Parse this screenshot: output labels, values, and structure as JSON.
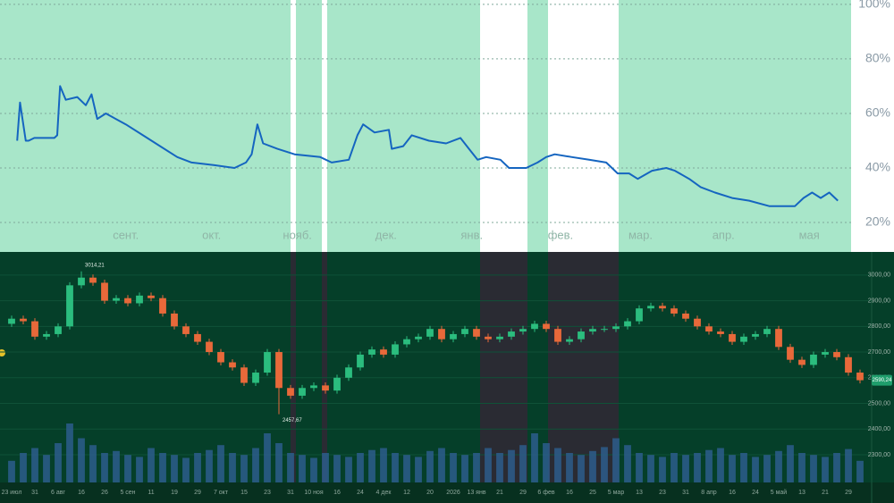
{
  "chart_data": [
    {
      "type": "line",
      "color": "#1565c0",
      "x": [
        6,
        7,
        9,
        10,
        12,
        19,
        20,
        21,
        23,
        27,
        30,
        32,
        34,
        37,
        44,
        50,
        56,
        62,
        67,
        75,
        82,
        86,
        88,
        90,
        92,
        97,
        103,
        112,
        116,
        122,
        125,
        127,
        131,
        136,
        137,
        141,
        144,
        150,
        156,
        161,
        164,
        167,
        170,
        175,
        178,
        184,
        188,
        191,
        194,
        200,
        206,
        212,
        216,
        220,
        223,
        228,
        233,
        236,
        241,
        245,
        250,
        256,
        262,
        269,
        278,
        281,
        284,
        287,
        290,
        293
      ],
      "values": [
        50,
        64,
        50,
        50,
        51,
        51,
        52,
        70,
        65,
        66,
        63,
        67,
        58,
        60,
        56,
        52,
        48,
        44,
        42,
        41,
        40,
        42,
        45,
        56,
        49,
        47,
        45,
        44,
        42,
        43,
        52,
        56,
        53,
        54,
        47,
        48,
        52,
        50,
        49,
        51,
        47,
        43,
        44,
        43,
        40,
        40,
        42,
        44,
        45,
        44,
        43,
        42,
        38,
        38,
        36,
        39,
        40,
        39,
        36,
        33,
        31,
        29,
        28,
        26,
        26,
        29,
        31,
        29,
        31,
        28
      ],
      "xlim": [
        0,
        297
      ],
      "xticks": [
        {
          "value": 44,
          "label": "сент."
        },
        {
          "value": 74,
          "label": "окт."
        },
        {
          "value": 104,
          "label": "нояб."
        },
        {
          "value": 135,
          "label": "дек."
        },
        {
          "value": 165,
          "label": "янв."
        },
        {
          "value": 196,
          "label": "фев."
        },
        {
          "value": 224,
          "label": "мар."
        },
        {
          "value": 253,
          "label": "апр."
        },
        {
          "value": 283,
          "label": "мая"
        }
      ],
      "ylim": [
        9.2,
        101.6
      ],
      "yticks": [
        {
          "value": 20,
          "label": "20%"
        },
        {
          "value": 40,
          "label": "40%"
        },
        {
          "value": 60,
          "label": "60%"
        },
        {
          "value": 80,
          "label": "80%"
        },
        {
          "value": 100,
          "label": "100%"
        }
      ],
      "grid": true
    },
    {
      "type": "candlestick",
      "up_color": "#2bbd7e",
      "down_color": "#e8693a",
      "volume_color": "#2d5d8c",
      "open": [
        2810,
        2830,
        2820,
        2760,
        2770,
        2800,
        2960,
        2990,
        2970,
        2900,
        2910,
        2890,
        2920,
        2910,
        2850,
        2800,
        2770,
        2740,
        2700,
        2660,
        2640,
        2580,
        2620,
        2700,
        2560,
        2530,
        2560,
        2570,
        2550,
        2600,
        2640,
        2690,
        2710,
        2690,
        2730,
        2750,
        2760,
        2790,
        2750,
        2770,
        2790,
        2760,
        2750,
        2760,
        2780,
        2790,
        2810,
        2790,
        2740,
        2750,
        2780,
        2790,
        2790,
        2800,
        2820,
        2870,
        2880,
        2870,
        2850,
        2830,
        2800,
        2780,
        2770,
        2740,
        2760,
        2770,
        2790,
        2720,
        2670,
        2650,
        2690,
        2700,
        2680,
        2620
      ],
      "high": [
        2842,
        2842,
        2832,
        2782,
        2812,
        2972,
        3014.21,
        3002,
        2982,
        2922,
        2922,
        2932,
        2932,
        2922,
        2862,
        2812,
        2782,
        2752,
        2712,
        2672,
        2652,
        2632,
        2712,
        2712,
        2572,
        2572,
        2582,
        2582,
        2612,
        2652,
        2702,
        2722,
        2722,
        2742,
        2762,
        2772,
        2802,
        2802,
        2782,
        2802,
        2802,
        2772,
        2772,
        2792,
        2802,
        2822,
        2822,
        2802,
        2762,
        2792,
        2802,
        2802,
        2812,
        2832,
        2882,
        2892,
        2892,
        2882,
        2862,
        2842,
        2812,
        2792,
        2782,
        2772,
        2782,
        2802,
        2802,
        2732,
        2682,
        2702,
        2712,
        2712,
        2692,
        2632
      ],
      "low": [
        2798,
        2808,
        2748,
        2748,
        2758,
        2788,
        2948,
        2958,
        2888,
        2888,
        2878,
        2878,
        2898,
        2838,
        2788,
        2758,
        2728,
        2688,
        2648,
        2628,
        2568,
        2568,
        2608,
        2457.67,
        2518,
        2518,
        2548,
        2538,
        2538,
        2588,
        2628,
        2678,
        2678,
        2678,
        2718,
        2738,
        2748,
        2738,
        2738,
        2758,
        2748,
        2738,
        2738,
        2748,
        2768,
        2778,
        2778,
        2728,
        2728,
        2738,
        2768,
        2778,
        2778,
        2788,
        2808,
        2858,
        2858,
        2838,
        2818,
        2788,
        2768,
        2758,
        2728,
        2728,
        2748,
        2758,
        2708,
        2658,
        2638,
        2638,
        2678,
        2668,
        2608,
        2578
      ],
      "close": [
        2830,
        2820,
        2760,
        2770,
        2800,
        2960,
        2990,
        2970,
        2900,
        2910,
        2890,
        2920,
        2910,
        2850,
        2800,
        2770,
        2740,
        2700,
        2660,
        2640,
        2580,
        2620,
        2700,
        2560,
        2530,
        2560,
        2570,
        2550,
        2600,
        2640,
        2690,
        2710,
        2690,
        2730,
        2750,
        2760,
        2790,
        2750,
        2770,
        2790,
        2760,
        2750,
        2760,
        2780,
        2790,
        2810,
        2790,
        2740,
        2750,
        2780,
        2790,
        2790,
        2800,
        2820,
        2870,
        2880,
        2870,
        2850,
        2830,
        2800,
        2780,
        2770,
        2740,
        2760,
        2770,
        2790,
        2720,
        2670,
        2650,
        2690,
        2700,
        2680,
        2620,
        2590.24
      ],
      "close_labels_last": "2590,24",
      "volume": [
        22,
        30,
        35,
        28,
        40,
        60,
        45,
        38,
        30,
        32,
        28,
        26,
        35,
        30,
        28,
        25,
        30,
        33,
        38,
        30,
        28,
        35,
        50,
        40,
        30,
        28,
        25,
        30,
        28,
        26,
        30,
        33,
        35,
        30,
        28,
        26,
        32,
        35,
        30,
        28,
        30,
        35,
        30,
        33,
        38,
        50,
        40,
        35,
        30,
        28,
        32,
        36,
        45,
        38,
        30,
        28,
        26,
        30,
        28,
        30,
        33,
        35,
        28,
        30,
        26,
        28,
        32,
        38,
        30,
        28,
        26,
        30,
        34,
        22
      ],
      "vlim": [
        0,
        100
      ],
      "annotations": [
        {
          "index": 6,
          "label": "3014,21"
        },
        {
          "index": 23,
          "label": "2457,67"
        }
      ],
      "xlim": [
        -1,
        74
      ],
      "xticks": [
        {
          "value": 0,
          "label": "23 июл"
        },
        {
          "value": 2,
          "label": "31"
        },
        {
          "value": 4,
          "label": "6 авг"
        },
        {
          "value": 6,
          "label": "16"
        },
        {
          "value": 8,
          "label": "26"
        },
        {
          "value": 10,
          "label": "5 сен"
        },
        {
          "value": 12,
          "label": "11"
        },
        {
          "value": 14,
          "label": "19"
        },
        {
          "value": 16,
          "label": "29"
        },
        {
          "value": 18,
          "label": "7 окт"
        },
        {
          "value": 20,
          "label": "15"
        },
        {
          "value": 22,
          "label": "23"
        },
        {
          "value": 24,
          "label": "31"
        },
        {
          "value": 26,
          "label": "10 ноя"
        },
        {
          "value": 28,
          "label": "16"
        },
        {
          "value": 30,
          "label": "24"
        },
        {
          "value": 32,
          "label": "4 дек"
        },
        {
          "value": 34,
          "label": "12"
        },
        {
          "value": 36,
          "label": "20"
        },
        {
          "value": 38,
          "label": "2026"
        },
        {
          "value": 40,
          "label": "13 янв"
        },
        {
          "value": 42,
          "label": "21"
        },
        {
          "value": 44,
          "label": "29"
        },
        {
          "value": 46,
          "label": "6 фев"
        },
        {
          "value": 48,
          "label": "16"
        },
        {
          "value": 50,
          "label": "25"
        },
        {
          "value": 52,
          "label": "5 мар"
        },
        {
          "value": 54,
          "label": "13"
        },
        {
          "value": 56,
          "label": "23"
        },
        {
          "value": 58,
          "label": "31"
        },
        {
          "value": 60,
          "label": "8 апр"
        },
        {
          "value": 62,
          "label": "16"
        },
        {
          "value": 64,
          "label": "24"
        },
        {
          "value": 66,
          "label": "5 май"
        },
        {
          "value": 68,
          "label": "13"
        },
        {
          "value": 70,
          "label": "21"
        },
        {
          "value": 72,
          "label": "29"
        }
      ],
      "ylim": [
        2192,
        3090
      ],
      "yticks": [
        {
          "value": 2300,
          "label": "2300,00"
        },
        {
          "value": 2400,
          "label": "2400,00"
        },
        {
          "value": 2500,
          "label": "2500,00"
        },
        {
          "value": 2600,
          "label": "2600,00"
        },
        {
          "value": 2700,
          "label": "2700,00"
        },
        {
          "value": 2800,
          "label": "2800,00"
        },
        {
          "value": 2900,
          "label": "2900,00"
        },
        {
          "value": 3000,
          "label": "3000,00"
        }
      ],
      "grid": true
    }
  ]
}
